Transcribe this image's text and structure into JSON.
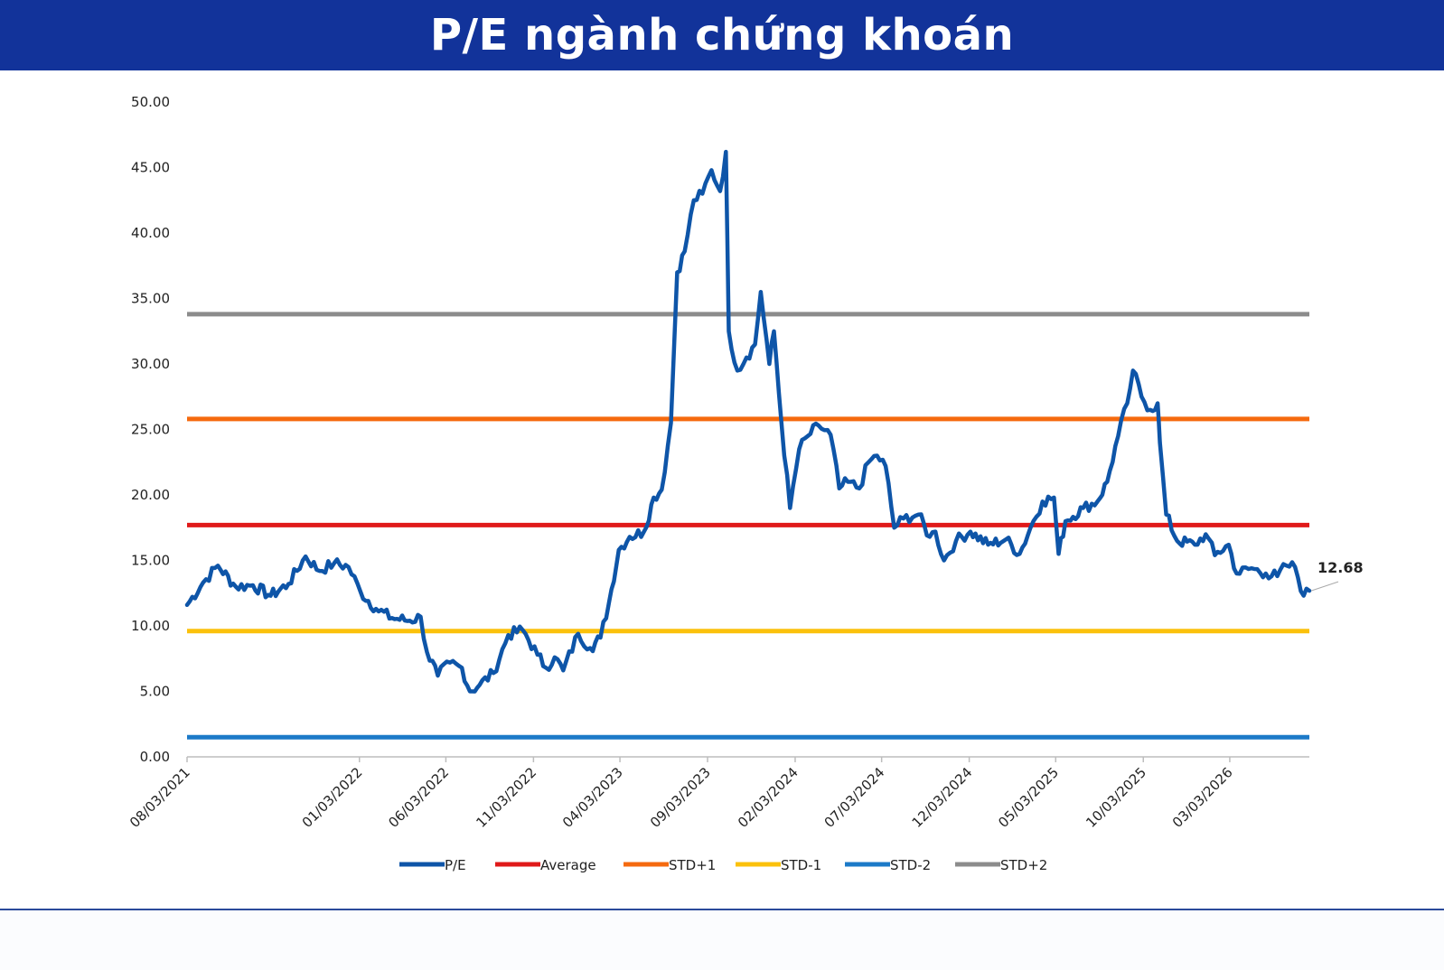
{
  "header": {
    "title": "P/E ngành chứng khoán"
  },
  "chart_data": {
    "type": "line",
    "title": "P/E ngành chứng khoán",
    "xlabel": "",
    "ylabel": "",
    "ylim": [
      0,
      50
    ],
    "y_ticks": [
      "0.00",
      "5.00",
      "10.00",
      "15.00",
      "20.00",
      "25.00",
      "30.00",
      "35.00",
      "40.00",
      "45.00",
      "50.00"
    ],
    "x_range": [
      "2021-03-08",
      "2026-07-20"
    ],
    "x_ticks": [
      {
        "date": "2021-03-08",
        "label": "08/03/2021"
      },
      {
        "date": "2022-01-03",
        "label": "01/03/2022"
      },
      {
        "date": "2022-06-03",
        "label": "06/03/2022"
      },
      {
        "date": "2022-11-03",
        "label": "11/03/2022"
      },
      {
        "date": "2023-04-03",
        "label": "04/03/2023"
      },
      {
        "date": "2023-09-03",
        "label": "09/03/2023"
      },
      {
        "date": "2024-02-03",
        "label": "02/03/2024"
      },
      {
        "date": "2024-07-03",
        "label": "07/03/2024"
      },
      {
        "date": "2024-12-03",
        "label": "12/03/2024"
      },
      {
        "date": "2025-05-03",
        "label": "05/03/2025"
      },
      {
        "date": "2025-10-03",
        "label": "10/03/2025"
      },
      {
        "date": "2026-03-03",
        "label": "03/03/2026"
      }
    ],
    "grid": false,
    "legend_position": "bottom",
    "last_value_label": "12.68",
    "series": [
      {
        "name": "P/E",
        "color": "#0e55a8",
        "points": [
          [
            "2021-03-08",
            11.6
          ],
          [
            "2021-04-05",
            13.3
          ],
          [
            "2021-05-01",
            14.6
          ],
          [
            "2021-06-01",
            13.0
          ],
          [
            "2021-07-01",
            13.1
          ],
          [
            "2021-08-01",
            12.3
          ],
          [
            "2021-09-01",
            13.2
          ],
          [
            "2021-10-01",
            15.3
          ],
          [
            "2021-10-25",
            14.2
          ],
          [
            "2021-11-20",
            14.8
          ],
          [
            "2021-12-15",
            14.5
          ],
          [
            "2022-01-05",
            12.6
          ],
          [
            "2022-02-01",
            11.3
          ],
          [
            "2022-03-01",
            10.6
          ],
          [
            "2022-04-01",
            10.4
          ],
          [
            "2022-04-20",
            10.7
          ],
          [
            "2022-05-01",
            8.0
          ],
          [
            "2022-05-20",
            6.2
          ],
          [
            "2022-06-10",
            7.2
          ],
          [
            "2022-07-01",
            6.8
          ],
          [
            "2022-07-15",
            5.0
          ],
          [
            "2022-08-01",
            5.5
          ],
          [
            "2022-08-25",
            6.4
          ],
          [
            "2022-09-20",
            9.3
          ],
          [
            "2022-10-15",
            9.7
          ],
          [
            "2022-11-10",
            7.8
          ],
          [
            "2022-11-25",
            6.8
          ],
          [
            "2022-12-10",
            7.6
          ],
          [
            "2022-12-25",
            6.6
          ],
          [
            "2023-01-20",
            9.4
          ],
          [
            "2023-02-10",
            8.3
          ],
          [
            "2023-02-28",
            9.1
          ],
          [
            "2023-03-15",
            11.8
          ],
          [
            "2023-04-01",
            15.8
          ],
          [
            "2023-04-20",
            16.8
          ],
          [
            "2023-05-15",
            17.2
          ],
          [
            "2023-06-01",
            19.8
          ],
          [
            "2023-06-15",
            20.4
          ],
          [
            "2023-07-01",
            25.5
          ],
          [
            "2023-07-12",
            37.0
          ],
          [
            "2023-07-25",
            38.6
          ],
          [
            "2023-08-10",
            42.5
          ],
          [
            "2023-08-25",
            43.0
          ],
          [
            "2023-09-10",
            44.8
          ],
          [
            "2023-09-25",
            43.2
          ],
          [
            "2023-10-05",
            46.2
          ],
          [
            "2023-10-10",
            32.5
          ],
          [
            "2023-10-25",
            29.5
          ],
          [
            "2023-11-10",
            30.5
          ],
          [
            "2023-11-25",
            31.5
          ],
          [
            "2023-12-05",
            35.5
          ],
          [
            "2023-12-20",
            30.0
          ],
          [
            "2023-12-28",
            32.5
          ],
          [
            "2024-01-10",
            25.5
          ],
          [
            "2024-01-25",
            19.0
          ],
          [
            "2024-02-10",
            23.5
          ],
          [
            "2024-02-25",
            24.5
          ],
          [
            "2024-03-15",
            25.3
          ],
          [
            "2024-04-05",
            24.6
          ],
          [
            "2024-04-20",
            20.5
          ],
          [
            "2024-05-05",
            21.0
          ],
          [
            "2024-05-25",
            20.5
          ],
          [
            "2024-06-10",
            22.5
          ],
          [
            "2024-06-25",
            23.0
          ],
          [
            "2024-07-10",
            22.2
          ],
          [
            "2024-07-25",
            17.5
          ],
          [
            "2024-08-10",
            18.2
          ],
          [
            "2024-09-05",
            18.5
          ],
          [
            "2024-09-25",
            16.8
          ],
          [
            "2024-10-05",
            17.2
          ],
          [
            "2024-10-20",
            15.0
          ],
          [
            "2024-11-10",
            16.5
          ],
          [
            "2024-12-05",
            17.2
          ],
          [
            "2025-01-05",
            16.2
          ],
          [
            "2025-02-05",
            16.6
          ],
          [
            "2025-03-01",
            15.5
          ],
          [
            "2025-03-20",
            17.5
          ],
          [
            "2025-04-10",
            19.5
          ],
          [
            "2025-04-30",
            19.8
          ],
          [
            "2025-05-08",
            15.5
          ],
          [
            "2025-05-20",
            18.0
          ],
          [
            "2025-06-20",
            19.0
          ],
          [
            "2025-07-15",
            19.5
          ],
          [
            "2025-08-01",
            21.0
          ],
          [
            "2025-08-20",
            24.5
          ],
          [
            "2025-09-05",
            27.0
          ],
          [
            "2025-09-15",
            29.5
          ],
          [
            "2025-09-30",
            27.5
          ],
          [
            "2025-10-15",
            26.5
          ],
          [
            "2025-10-28",
            27.0
          ],
          [
            "2025-11-01",
            24.0
          ],
          [
            "2025-11-12",
            18.5
          ],
          [
            "2025-12-01",
            16.5
          ],
          [
            "2026-01-01",
            16.2
          ],
          [
            "2026-01-20",
            17.0
          ],
          [
            "2026-02-05",
            15.4
          ],
          [
            "2026-03-01",
            16.2
          ],
          [
            "2026-03-15",
            14.0
          ],
          [
            "2026-04-10",
            14.4
          ],
          [
            "2026-05-05",
            14.0
          ],
          [
            "2026-05-25",
            13.8
          ],
          [
            "2026-06-10",
            14.6
          ],
          [
            "2026-06-25",
            14.5
          ],
          [
            "2026-07-10",
            12.3
          ],
          [
            "2026-07-20",
            12.68
          ]
        ]
      },
      {
        "name": "Average",
        "color": "#e01a1a",
        "value": 17.7
      },
      {
        "name": "STD+1",
        "color": "#f56a0f",
        "value": 25.8
      },
      {
        "name": "STD-1",
        "color": "#fbc10c",
        "value": 9.6
      },
      {
        "name": "STD-2",
        "color": "#1c7ac8",
        "value": 1.5
      },
      {
        "name": "STD+2",
        "color": "#8c8c8c",
        "value": 33.8
      }
    ]
  }
}
